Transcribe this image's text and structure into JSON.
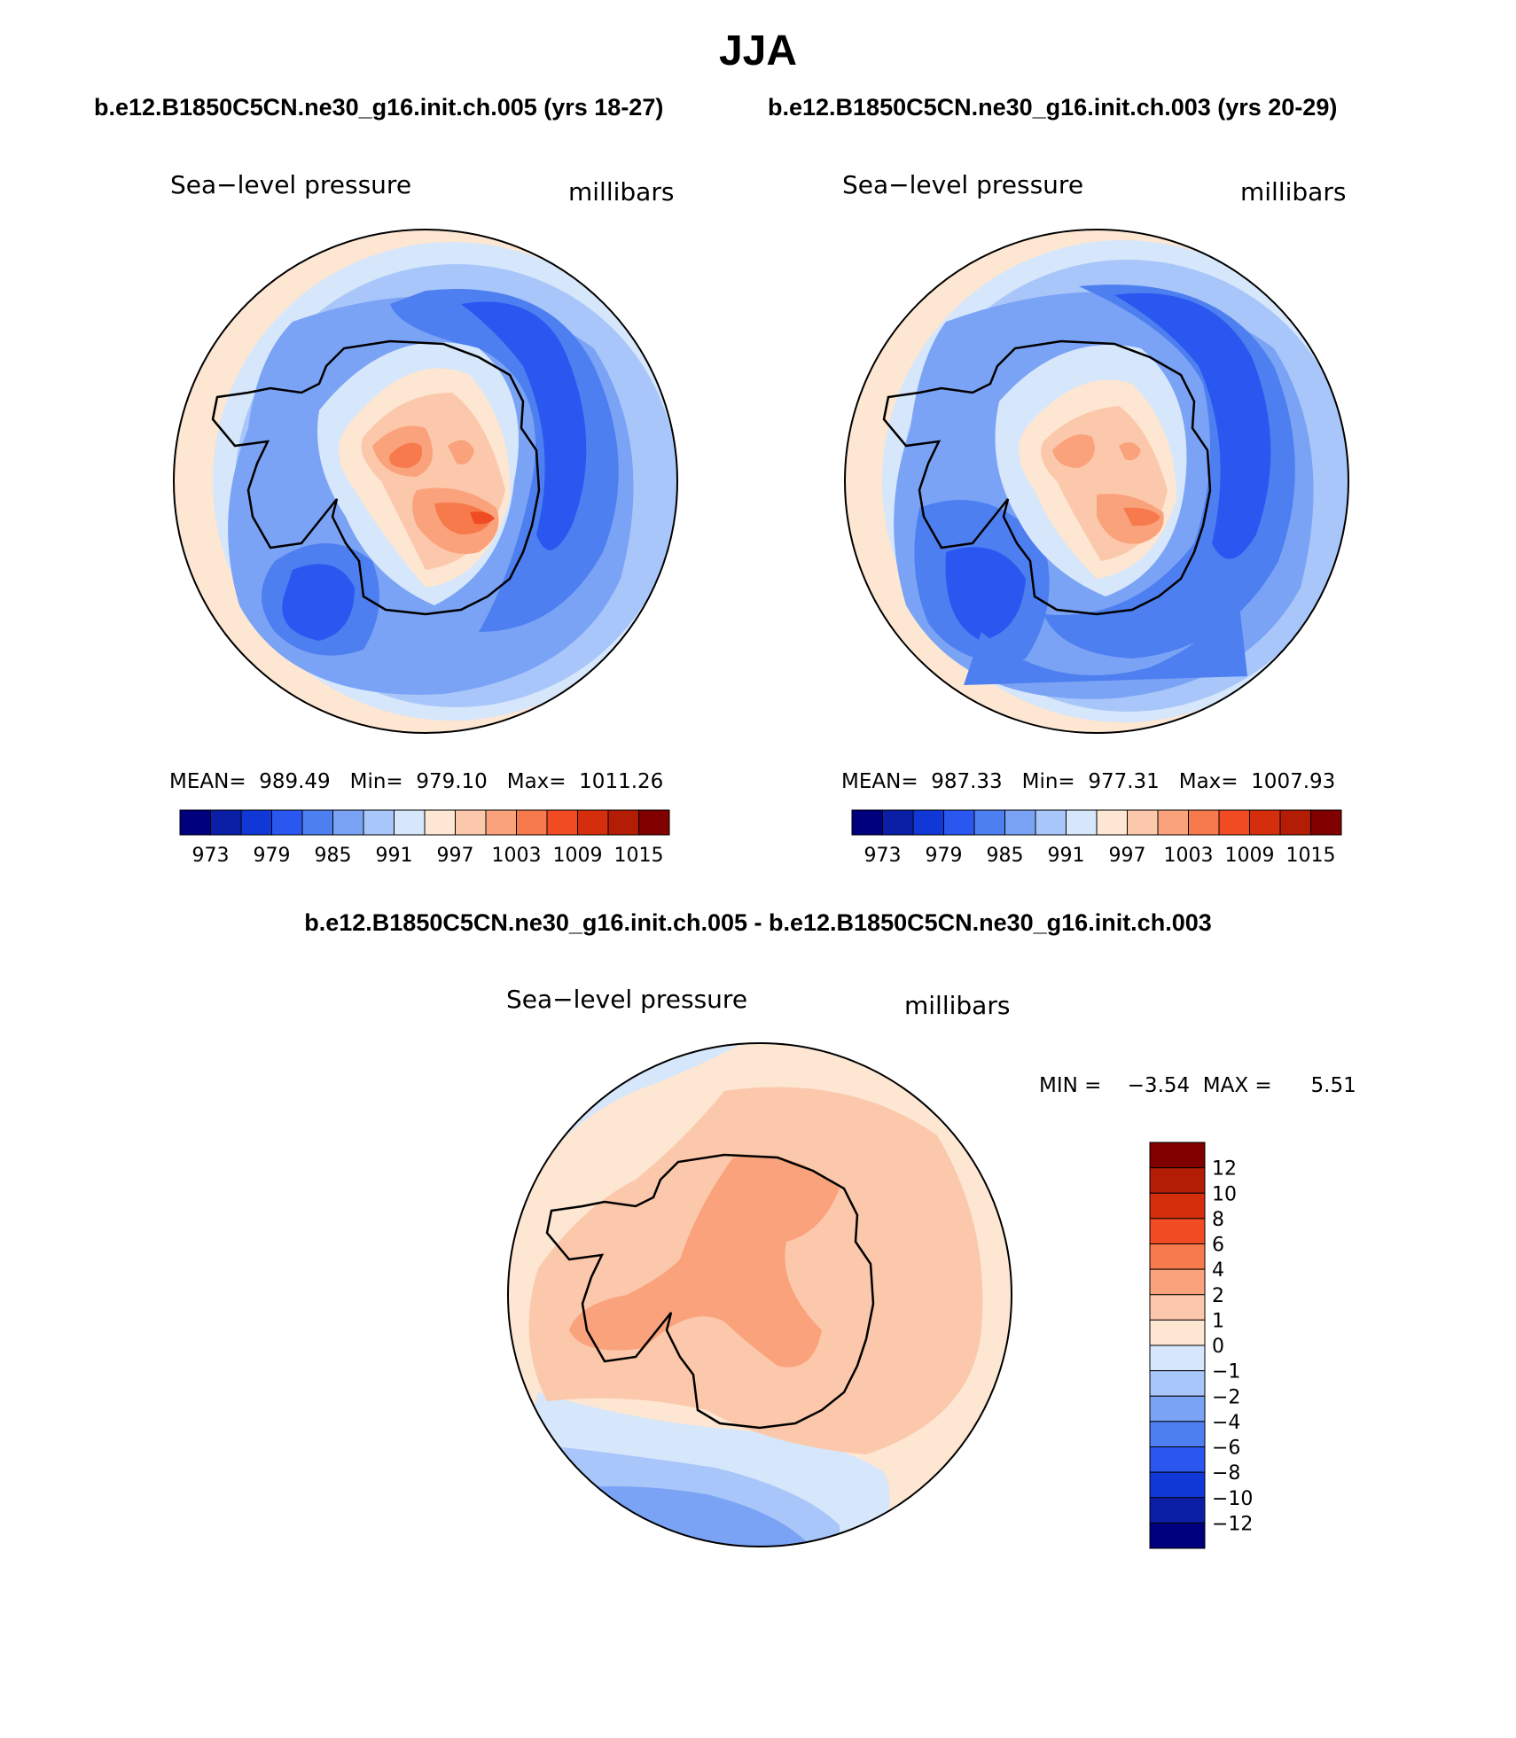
{
  "main_title": "JJA",
  "top_left_case": "b.e12.B1850C5CN.ne30_g16.init.ch.005 (yrs 18-27)",
  "top_right_case": "b.e12.B1850C5CN.ne30_g16.init.ch.003 (yrs 20-29)",
  "diff_title": "b.e12.B1850C5CN.ne30_g16.init.ch.005 - b.e12.B1850C5CN.ne30_g16.init.ch.003",
  "panels": [
    {
      "variable": "Sea−level pressure",
      "units": "millibars",
      "stats": "MEAN=  989.49   Min=  979.10   Max=  1011.26",
      "colorbar_labels": [
        "973",
        "979",
        "985",
        "991",
        "997",
        "1003",
        "1009",
        "1015"
      ]
    },
    {
      "variable": "Sea−level pressure",
      "units": "millibars",
      "stats": "MEAN=  987.33   Min=  977.31   Max=  1007.93",
      "colorbar_labels": [
        "973",
        "979",
        "985",
        "991",
        "997",
        "1003",
        "1009",
        "1015"
      ]
    }
  ],
  "diff_panel": {
    "variable": "Sea−level pressure",
    "units": "millibars",
    "stats": "MIN =    −3.54  MAX =      5.51",
    "colorbar_labels": [
      "12",
      "10",
      "8",
      "6",
      "4",
      "2",
      "1",
      "0",
      "−1",
      "−2",
      "−4",
      "−6",
      "−8",
      "−10",
      "−12"
    ]
  },
  "colors": {
    "abs_colorbar": [
      "#00007f",
      "#0a1fa6",
      "#0f38d6",
      "#2a57f0",
      "#4d7ff0",
      "#7ba3f5",
      "#a8c6f9",
      "#d6e6fb",
      "#fde6d2",
      "#fcc8ab",
      "#f9a27b",
      "#f77a4c",
      "#f04b22",
      "#d42e0c",
      "#b31d06",
      "#800000"
    ],
    "diff_colorbar": [
      "#800000",
      "#b31d06",
      "#d42e0c",
      "#f04b22",
      "#f77a4c",
      "#f9a27b",
      "#fcc8ab",
      "#fde6d2",
      "#d6e6fb",
      "#a8c6f9",
      "#7ba3f5",
      "#4d7ff0",
      "#2a57f0",
      "#0f38d6",
      "#0a1fa6",
      "#00007f"
    ]
  }
}
